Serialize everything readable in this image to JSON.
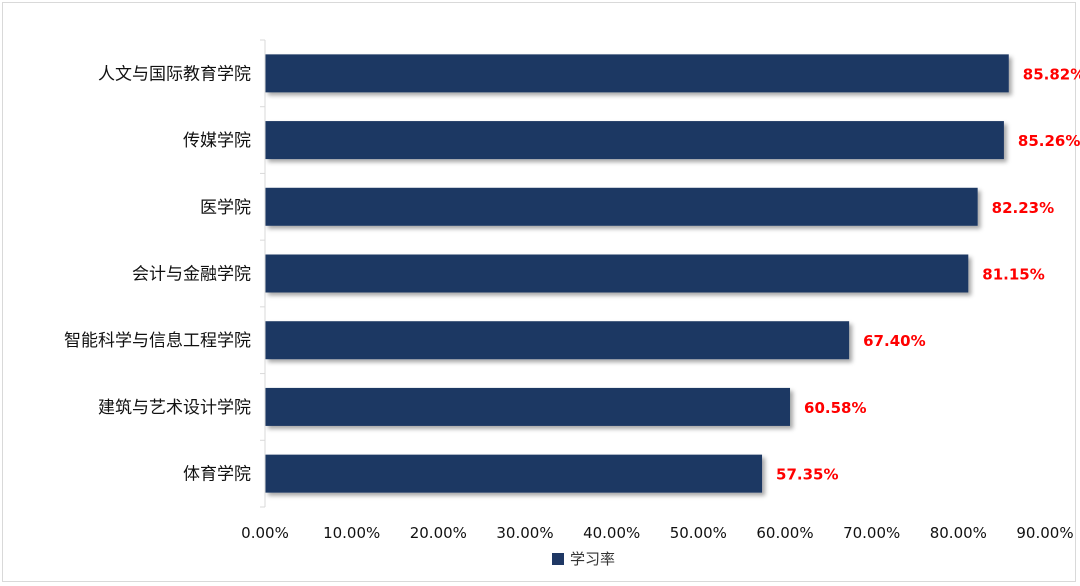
{
  "chart_data": {
    "type": "bar",
    "orientation": "horizontal",
    "categories": [
      "人文与国际教育学院",
      "传媒学院",
      "医学院",
      "会计与金融学院",
      "智能科学与信息工程学院",
      "建筑与艺术设计学院",
      "体育学院"
    ],
    "series": [
      {
        "name": "学习率",
        "values": [
          85.82,
          85.26,
          82.23,
          81.15,
          67.4,
          60.58,
          57.35
        ],
        "data_labels": [
          "85.82%",
          "85.26%",
          "82.23%",
          "81.15%",
          "67.40%",
          "60.58%",
          "57.35%"
        ]
      }
    ],
    "xlim": [
      0,
      90
    ],
    "x_ticks": [
      0,
      10,
      20,
      30,
      40,
      50,
      60,
      70,
      80,
      90
    ],
    "x_tick_labels": [
      "0.00%",
      "10.00%",
      "20.00%",
      "30.00%",
      "40.00%",
      "50.00%",
      "60.00%",
      "70.00%",
      "80.00%",
      "90.00%"
    ],
    "grid": false,
    "legend_position": "bottom",
    "colors": {
      "bar": "#1f3864",
      "data_label": "#ff0000",
      "axis": "#d9d9d9"
    }
  }
}
